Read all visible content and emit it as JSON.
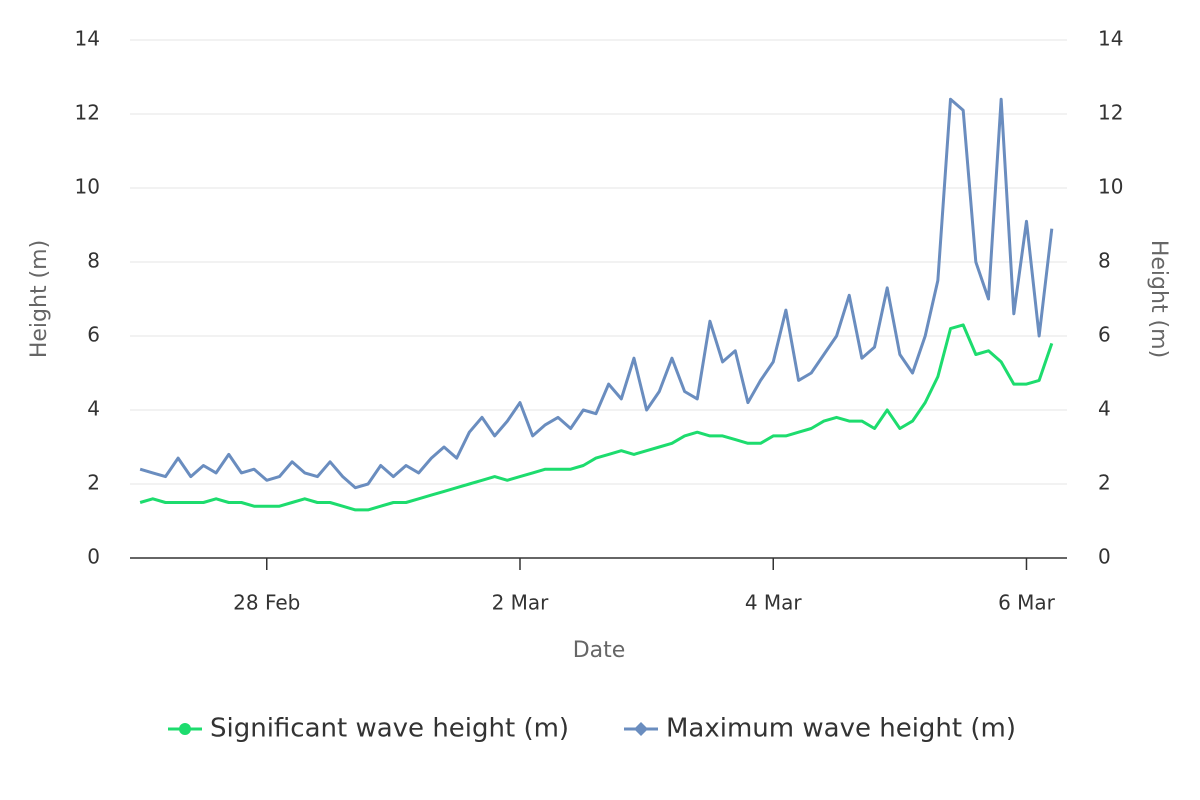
{
  "chart_data": {
    "type": "line",
    "x_label": "Date",
    "y_label": "Height (m)",
    "y2_label": "Height (m)",
    "x": [
      -1.0,
      -0.9,
      -0.8,
      -0.7,
      -0.6,
      -0.5,
      -0.4,
      -0.3,
      -0.2,
      -0.1,
      0.0,
      0.1,
      0.2,
      0.3,
      0.4,
      0.5,
      0.6,
      0.7,
      0.8,
      0.9,
      1.0,
      1.1,
      1.2,
      1.3,
      1.4,
      1.5,
      1.6,
      1.7,
      1.8,
      1.9,
      2.0,
      2.1,
      2.2,
      2.3,
      2.4,
      2.5,
      2.6,
      2.7,
      2.8,
      2.9,
      3.0,
      3.1,
      3.2,
      3.3,
      3.4,
      3.5,
      3.6,
      3.7,
      3.8,
      3.9,
      4.0,
      4.1,
      4.2,
      4.3,
      4.4,
      4.5,
      4.6,
      4.7,
      4.8,
      4.9,
      5.0,
      5.1,
      5.2,
      5.3,
      5.4,
      5.5,
      5.6,
      5.7,
      5.8,
      5.9,
      6.0,
      6.1,
      6.2
    ],
    "xlim": [
      -1.08,
      6.32
    ],
    "xticks": [
      {
        "value": 0,
        "label": "28 Feb"
      },
      {
        "value": 2,
        "label": "2 Mar"
      },
      {
        "value": 4,
        "label": "4 Mar"
      },
      {
        "value": 6,
        "label": "6 Mar"
      }
    ],
    "ylim": [
      0,
      14
    ],
    "yticks": [
      0,
      2,
      4,
      6,
      8,
      10,
      12,
      14
    ],
    "y2lim": [
      0,
      14
    ],
    "y2ticks": [
      0,
      2,
      4,
      6,
      8,
      10,
      12,
      14
    ],
    "grid": true,
    "legend": "bottom",
    "series": [
      {
        "name": "Significant wave height (m)",
        "color": "#1ddc6e",
        "marker": "circle",
        "values": [
          1.5,
          1.6,
          1.5,
          1.5,
          1.5,
          1.5,
          1.6,
          1.5,
          1.5,
          1.4,
          1.4,
          1.4,
          1.5,
          1.6,
          1.5,
          1.5,
          1.4,
          1.3,
          1.3,
          1.4,
          1.5,
          1.5,
          1.6,
          1.7,
          1.8,
          1.9,
          2.0,
          2.1,
          2.2,
          2.1,
          2.2,
          2.3,
          2.4,
          2.4,
          2.4,
          2.5,
          2.7,
          2.8,
          2.9,
          2.8,
          2.9,
          3.0,
          3.1,
          3.3,
          3.4,
          3.3,
          3.3,
          3.2,
          3.1,
          3.1,
          3.3,
          3.3,
          3.4,
          3.5,
          3.7,
          3.8,
          3.7,
          3.7,
          3.5,
          4.0,
          3.5,
          3.7,
          4.2,
          4.9,
          6.2,
          6.3,
          5.5,
          5.6,
          5.3,
          4.7,
          4.7,
          4.8,
          5.8
        ]
      },
      {
        "name": "Maximum wave height (m)",
        "color": "#6a8dbf",
        "marker": "diamond",
        "values": [
          2.4,
          2.3,
          2.2,
          2.7,
          2.2,
          2.5,
          2.3,
          2.8,
          2.3,
          2.4,
          2.1,
          2.2,
          2.6,
          2.3,
          2.2,
          2.6,
          2.2,
          1.9,
          2.0,
          2.5,
          2.2,
          2.5,
          2.3,
          2.7,
          3.0,
          2.7,
          3.4,
          3.8,
          3.3,
          3.7,
          4.2,
          3.3,
          3.6,
          3.8,
          3.5,
          4.0,
          3.9,
          4.7,
          4.3,
          5.4,
          4.0,
          4.5,
          5.4,
          4.5,
          4.3,
          6.4,
          5.3,
          5.6,
          4.2,
          4.8,
          5.3,
          6.7,
          4.8,
          5.0,
          5.5,
          6.0,
          7.1,
          5.4,
          5.7,
          7.3,
          5.5,
          5.0,
          6.0,
          7.5,
          12.4,
          12.1,
          8.0,
          7.0,
          12.4,
          6.6,
          9.1,
          6.0,
          8.9
        ]
      }
    ]
  }
}
